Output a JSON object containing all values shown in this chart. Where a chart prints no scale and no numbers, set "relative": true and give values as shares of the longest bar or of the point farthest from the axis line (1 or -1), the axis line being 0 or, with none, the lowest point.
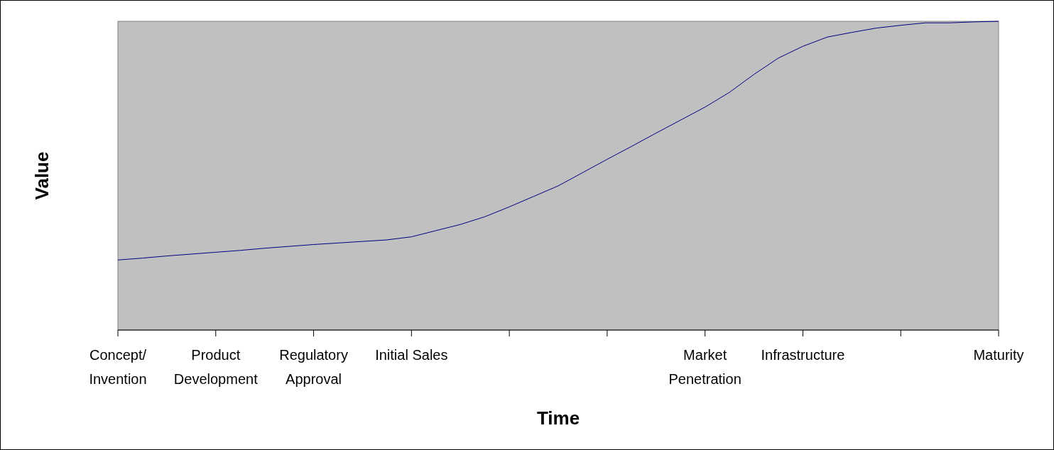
{
  "chart_data": {
    "type": "line",
    "relative": true,
    "xlabel": "Time",
    "ylabel": "Value",
    "categories": [
      "Concept/ Invention",
      null,
      null,
      null,
      "Product Development",
      null,
      null,
      null,
      "Regulatory Approval",
      null,
      null,
      null,
      "Initial Sales",
      null,
      null,
      null,
      null,
      null,
      null,
      null,
      null,
      null,
      null,
      null,
      "Market Penetration",
      null,
      null,
      null,
      "Infrastructure",
      null,
      null,
      null,
      null,
      null,
      null,
      null,
      "Maturity"
    ],
    "series": [
      {
        "color": "#000080",
        "values": [
          0.227,
          0.233,
          0.24,
          0.246,
          0.252,
          0.258,
          0.265,
          0.271,
          0.277,
          0.282,
          0.287,
          0.292,
          0.302,
          0.322,
          0.342,
          0.367,
          0.399,
          0.433,
          0.467,
          0.51,
          0.553,
          0.595,
          0.638,
          0.68,
          0.722,
          0.77,
          0.828,
          0.881,
          0.919,
          0.949,
          0.964,
          0.978,
          0.987,
          0.995,
          0.995,
          0.998,
          1
        ]
      }
    ],
    "marker": "none",
    "line_style": "solid"
  }
}
